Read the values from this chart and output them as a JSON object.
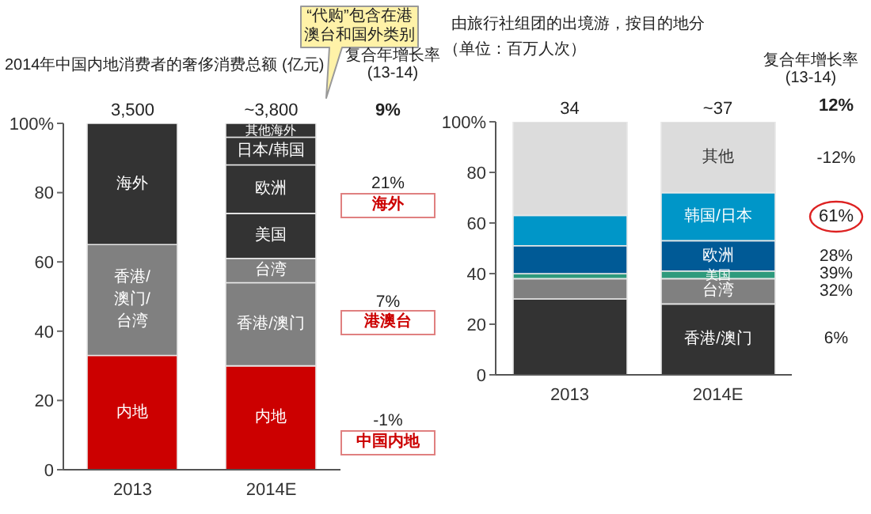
{
  "chart_data": [
    {
      "type": "bar",
      "title": "2014年中国内地消费者的奢侈消费总额 (亿元)",
      "categories": [
        "2013",
        "2014E"
      ],
      "stacked": true,
      "series": [
        {
          "name": "内地",
          "color": "#cc0000",
          "values": [
            33,
            null
          ]
        },
        {
          "name": "内地",
          "color": "#cc0000",
          "values": [
            null,
            30
          ]
        },
        {
          "name": "香港/澳门/台湾",
          "color": "#808080",
          "values": [
            32,
            null
          ]
        },
        {
          "name": "香港/澳门",
          "color": "#808080",
          "values": [
            null,
            24
          ]
        },
        {
          "name": "台湾",
          "color": "#808080",
          "values": [
            null,
            7
          ]
        },
        {
          "name": "海外",
          "color": "#333333",
          "values": [
            35,
            null
          ]
        },
        {
          "name": "美国",
          "color": "#333333",
          "values": [
            null,
            13
          ]
        },
        {
          "name": "欧洲",
          "color": "#333333",
          "values": [
            null,
            14
          ]
        },
        {
          "name": "日本/韩国",
          "color": "#333333",
          "values": [
            null,
            8
          ]
        },
        {
          "name": "其他海外",
          "color": "#333333",
          "values": [
            null,
            4
          ]
        }
      ],
      "ylim": [
        0,
        100
      ],
      "yticks": [
        0,
        20,
        40,
        60,
        80,
        {
          "value": 100,
          "label": "100%"
        }
      ],
      "annotations": [
        "“代购”包含在港澳台和国外类别",
        "复合年增长率\n(13-14)",
        "9%",
        "21%",
        "海外",
        "7%",
        "港澳台",
        "-1%",
        "中国内地",
        {
          "text": "3,500",
          "x": "2013",
          "y": 100
        },
        {
          "text": "~3,800",
          "x": "2014E",
          "y": 100
        }
      ]
    },
    {
      "type": "bar",
      "title": "由旅行社组团的出境游，按目的地分",
      "subtitle": "（单位：百万人次）",
      "categories": [
        "2013",
        "2014E"
      ],
      "stacked": true,
      "series": [
        {
          "name": "香港/澳门",
          "color": "#333333",
          "values": [
            30,
            28
          ]
        },
        {
          "name": "台湾",
          "color": "#808080",
          "values": [
            8,
            10
          ]
        },
        {
          "name": "美国",
          "color": "#2e9a7c",
          "values": [
            2,
            3
          ]
        },
        {
          "name": "欧洲",
          "color": "#005a96",
          "values": [
            11,
            12
          ]
        },
        {
          "name": "韩国/日本",
          "color": "#0096c8",
          "values": [
            12,
            19
          ]
        },
        {
          "name": "其他",
          "color": "#dcdcdc",
          "values": [
            37,
            28
          ]
        }
      ],
      "ylim": [
        0,
        100
      ],
      "yticks": [
        0,
        20,
        40,
        60,
        80,
        {
          "value": 100,
          "label": "100%"
        }
      ],
      "annotations": [
        "复合年增长率\n(13-14)",
        "12%",
        "-12%",
        "61%",
        "28%",
        "39%",
        "32%",
        "6%",
        {
          "text": "34",
          "x": "2013",
          "y": 100
        },
        {
          "text": "~37",
          "x": "2014E",
          "y": 100
        }
      ]
    }
  ]
}
